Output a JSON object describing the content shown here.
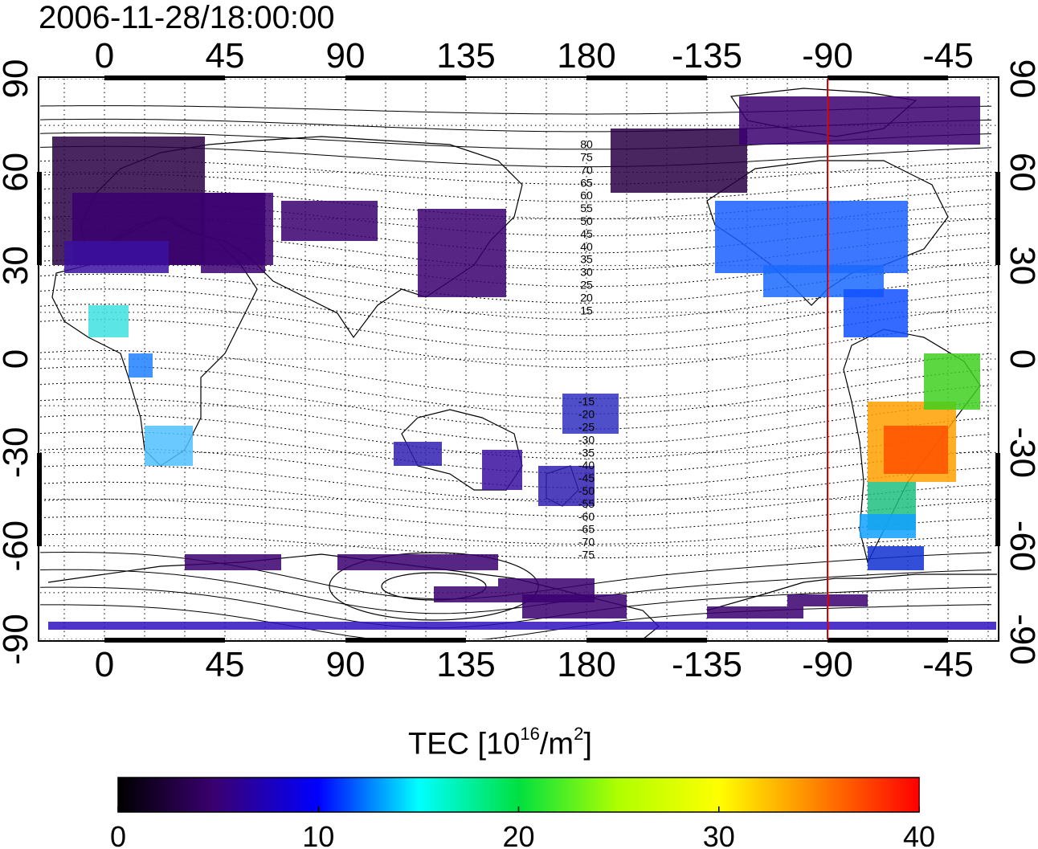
{
  "title": "2006-11-28/18:00:00",
  "map": {
    "lon_ticks": [
      "0",
      "45",
      "90",
      "135",
      "180",
      "-135",
      "-90",
      "-45"
    ],
    "lat_ticks": [
      "90",
      "60",
      "30",
      "0",
      "-30",
      "-60",
      "-90"
    ],
    "meridian_marker_lon": "-90",
    "meridian_marker_color": "#e00000",
    "contour_labels": [
      "80",
      "75",
      "70",
      "65",
      "60",
      "55",
      "50",
      "45",
      "40",
      "35",
      "30",
      "25",
      "20",
      "15",
      "-15",
      "-20",
      "-25",
      "-30",
      "-35",
      "-40",
      "-45",
      "-50",
      "-55",
      "-60",
      "-65",
      "-70",
      "-75"
    ],
    "grid": "dotted"
  },
  "colorbar": {
    "title_main": "TEC  [10",
    "title_exp1": "16",
    "title_mid": "/m",
    "title_exp2": "2",
    "title_end": "]",
    "tick_labels": [
      "0",
      "10",
      "20",
      "30",
      "40"
    ],
    "range": [
      0,
      40
    ],
    "colors": [
      "#000000",
      "#3a0070",
      "#0000ff",
      "#00ffff",
      "#00ff00",
      "#ffff00",
      "#ff8000",
      "#ff0000"
    ]
  }
}
